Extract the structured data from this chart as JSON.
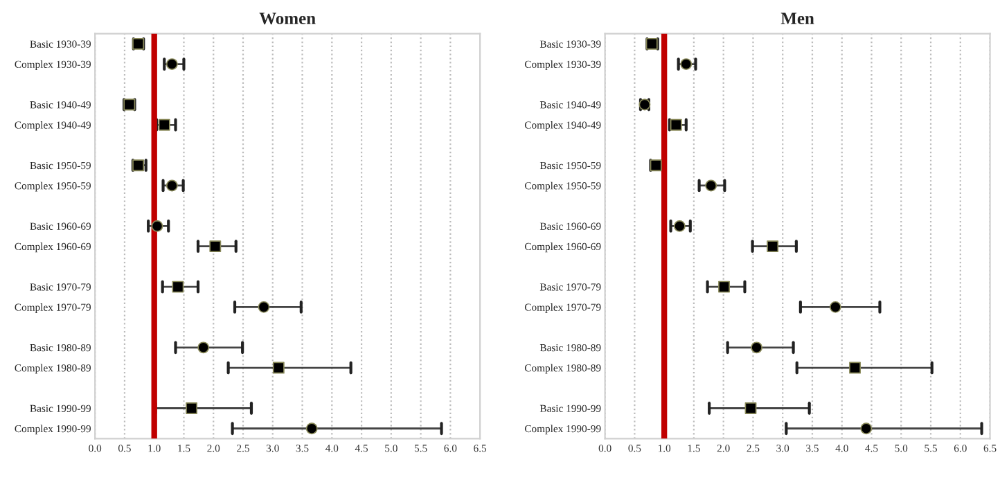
{
  "chart_data": [
    {
      "type": "scatter",
      "title": "Women",
      "orientation": "horizontal",
      "categories": [
        "Basic 1930-39",
        "Complex 1930-39",
        null,
        "Basic 1940-49",
        "Complex 1940-49",
        null,
        "Basic 1950-59",
        "Complex 1950-59",
        null,
        "Basic 1960-69",
        "Complex 1960-69",
        null,
        "Basic 1970-79",
        "Complex 1970-79",
        null,
        "Basic 1980-89",
        "Complex 1980-89",
        null,
        "Basic 1990-99",
        "Complex 1990-99"
      ],
      "series": [
        {
          "color": "#000000",
          "marker": "square",
          "values": [
            0.73,
            null,
            null,
            0.58,
            1.17,
            null,
            0.73,
            null,
            null,
            null,
            2.03,
            null,
            1.4,
            null,
            null,
            null,
            3.1,
            null,
            1.63,
            null
          ],
          "errors": [
            [
              0.65,
              0.82
            ],
            null,
            null,
            [
              0.49,
              0.67
            ],
            [
              1.04,
              1.36
            ],
            null,
            [
              0.64,
              0.86
            ],
            null,
            null,
            null,
            [
              1.74,
              2.38
            ],
            null,
            [
              1.14,
              1.74
            ],
            null,
            null,
            null,
            [
              2.25,
              4.32
            ],
            null,
            [
              1.02,
              2.64
            ],
            null
          ]
        },
        {
          "color": "#000000",
          "marker": "circle",
          "values": [
            null,
            1.3,
            null,
            null,
            null,
            null,
            null,
            1.3,
            null,
            1.05,
            null,
            null,
            null,
            2.85,
            null,
            1.83,
            null,
            null,
            null,
            3.66
          ],
          "errors": [
            null,
            [
              1.17,
              1.5
            ],
            null,
            null,
            null,
            null,
            null,
            [
              1.15,
              1.49
            ],
            null,
            [
              0.9,
              1.24
            ],
            null,
            null,
            null,
            [
              2.36,
              3.48
            ],
            null,
            [
              1.36,
              2.49
            ],
            null,
            null,
            null,
            [
              2.32,
              5.85
            ]
          ]
        }
      ],
      "xlim": [
        0,
        6.5
      ],
      "xticks": [
        {
          "value": 0,
          "label": "0.0"
        },
        0.5,
        {
          "value": 1,
          "label": "1.0"
        },
        1.5,
        {
          "value": 2,
          "label": "2.0"
        },
        2.5,
        {
          "value": 3,
          "label": "3.0"
        },
        3.5,
        {
          "value": 4,
          "label": "4.0"
        },
        4.5,
        {
          "value": 5,
          "label": "5.0"
        },
        5.5,
        {
          "value": 6,
          "label": "6.0"
        },
        6.5
      ],
      "grid": "x",
      "ref_lines": [
        {
          "axis": "x",
          "value": 1,
          "color": "#c00000"
        }
      ]
    },
    {
      "type": "scatter",
      "title": "Men",
      "orientation": "horizontal",
      "categories": [
        "Basic 1930-39",
        "Complex 1930-39",
        null,
        "Basic 1940-49",
        "Complex 1940-49",
        null,
        "Basic 1950-59",
        "Complex 1950-59",
        null,
        "Basic 1960-69",
        "Complex 1960-69",
        null,
        "Basic 1970-79",
        "Complex 1970-79",
        null,
        "Basic 1980-89",
        "Complex 1980-89",
        null,
        "Basic 1990-99",
        "Complex 1990-99"
      ],
      "series": [
        {
          "color": "#000000",
          "marker": "square",
          "values": [
            0.79,
            null,
            null,
            null,
            1.2,
            null,
            0.86,
            null,
            null,
            null,
            2.83,
            null,
            2.01,
            null,
            null,
            null,
            4.22,
            null,
            2.46,
            null
          ],
          "errors": [
            [
              0.71,
              0.89
            ],
            null,
            null,
            null,
            [
              1.09,
              1.37
            ],
            null,
            [
              0.77,
              0.97
            ],
            null,
            null,
            null,
            [
              2.49,
              3.23
            ],
            null,
            [
              1.73,
              2.36
            ],
            null,
            null,
            null,
            [
              3.24,
              5.52
            ],
            null,
            [
              1.76,
              3.45
            ],
            null
          ]
        },
        {
          "color": "#000000",
          "marker": "circle",
          "values": [
            null,
            1.37,
            null,
            0.67,
            null,
            null,
            null,
            1.79,
            null,
            1.26,
            null,
            null,
            null,
            3.89,
            null,
            2.56,
            null,
            null,
            null,
            4.41
          ],
          "errors": [
            null,
            [
              1.24,
              1.53
            ],
            null,
            [
              0.6,
              0.74
            ],
            null,
            null,
            null,
            [
              1.59,
              2.02
            ],
            null,
            [
              1.11,
              1.44
            ],
            null,
            null,
            null,
            [
              3.3,
              4.64
            ],
            null,
            [
              2.07,
              3.18
            ],
            null,
            null,
            null,
            [
              3.06,
              6.36
            ]
          ]
        }
      ],
      "xlim": [
        0,
        6.5
      ],
      "xticks": [
        {
          "value": 0,
          "label": "0.0"
        },
        0.5,
        {
          "value": 1,
          "label": "1.0"
        },
        1.5,
        {
          "value": 2,
          "label": "2.0"
        },
        2.5,
        {
          "value": 3,
          "label": "3.0"
        },
        3.5,
        {
          "value": 4,
          "label": "4.0"
        },
        4.5,
        {
          "value": 5,
          "label": "5.0"
        },
        5.5,
        {
          "value": 6,
          "label": "6.0"
        },
        6.5
      ],
      "grid": "x",
      "ref_lines": [
        {
          "axis": "x",
          "value": 1,
          "color": "#c00000"
        }
      ]
    }
  ]
}
